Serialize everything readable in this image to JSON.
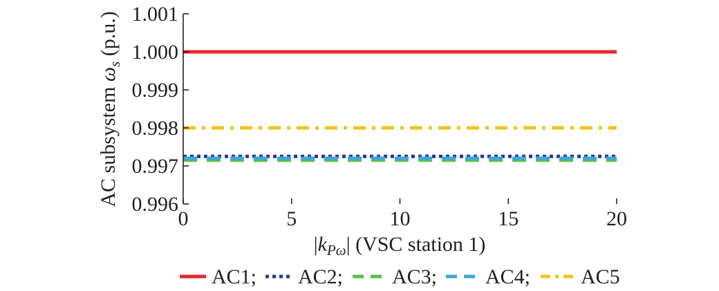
{
  "chart_data": {
    "type": "line",
    "xlabel": {
      "bar_left": "|",
      "k": "k",
      "sub": "Pω",
      "bar_right": "|",
      "rest": " (VSC station 1)"
    },
    "ylabel": {
      "prefix": "AC subsystem ",
      "omega": "ω",
      "sub": "s",
      "suffix": " (p.u.)"
    },
    "xlim": [
      0,
      20
    ],
    "ylim": [
      0.996,
      1.001
    ],
    "xticks": [
      0,
      5,
      10,
      15,
      20
    ],
    "yticks": [
      0.996,
      0.997,
      0.998,
      0.999,
      1.0,
      1.001
    ],
    "xtick_labels": [
      "0",
      "5",
      "10",
      "15",
      "20"
    ],
    "ytick_labels": [
      "0.996",
      "0.997",
      "0.998",
      "0.999",
      "1.000",
      "1.001"
    ],
    "grid": false,
    "legend_position": "bottom",
    "series": [
      {
        "name": "AC1",
        "legend_label": "AC1;",
        "color": "#e8262e",
        "dash": "solid",
        "x": [
          0,
          20
        ],
        "y": [
          1.0,
          1.0
        ]
      },
      {
        "name": "AC2",
        "legend_label": "AC2;",
        "color": "#2b3a8f",
        "dash": "dot",
        "x": [
          0,
          20
        ],
        "y": [
          0.99725,
          0.99725
        ]
      },
      {
        "name": "AC3",
        "legend_label": "AC3;",
        "color": "#5bbf4a",
        "dash": "dash",
        "x": [
          0,
          20
        ],
        "y": [
          0.99715,
          0.99715
        ]
      },
      {
        "name": "AC4",
        "legend_label": "AC4;",
        "color": "#3fa6d8",
        "dash": "dash",
        "x": [
          0,
          20
        ],
        "y": [
          0.9972,
          0.9972
        ]
      },
      {
        "name": "AC5",
        "legend_label": "AC5",
        "color": "#f0c419",
        "dash": "dashdot",
        "x": [
          0,
          20
        ],
        "y": [
          0.998,
          0.998
        ]
      }
    ]
  }
}
